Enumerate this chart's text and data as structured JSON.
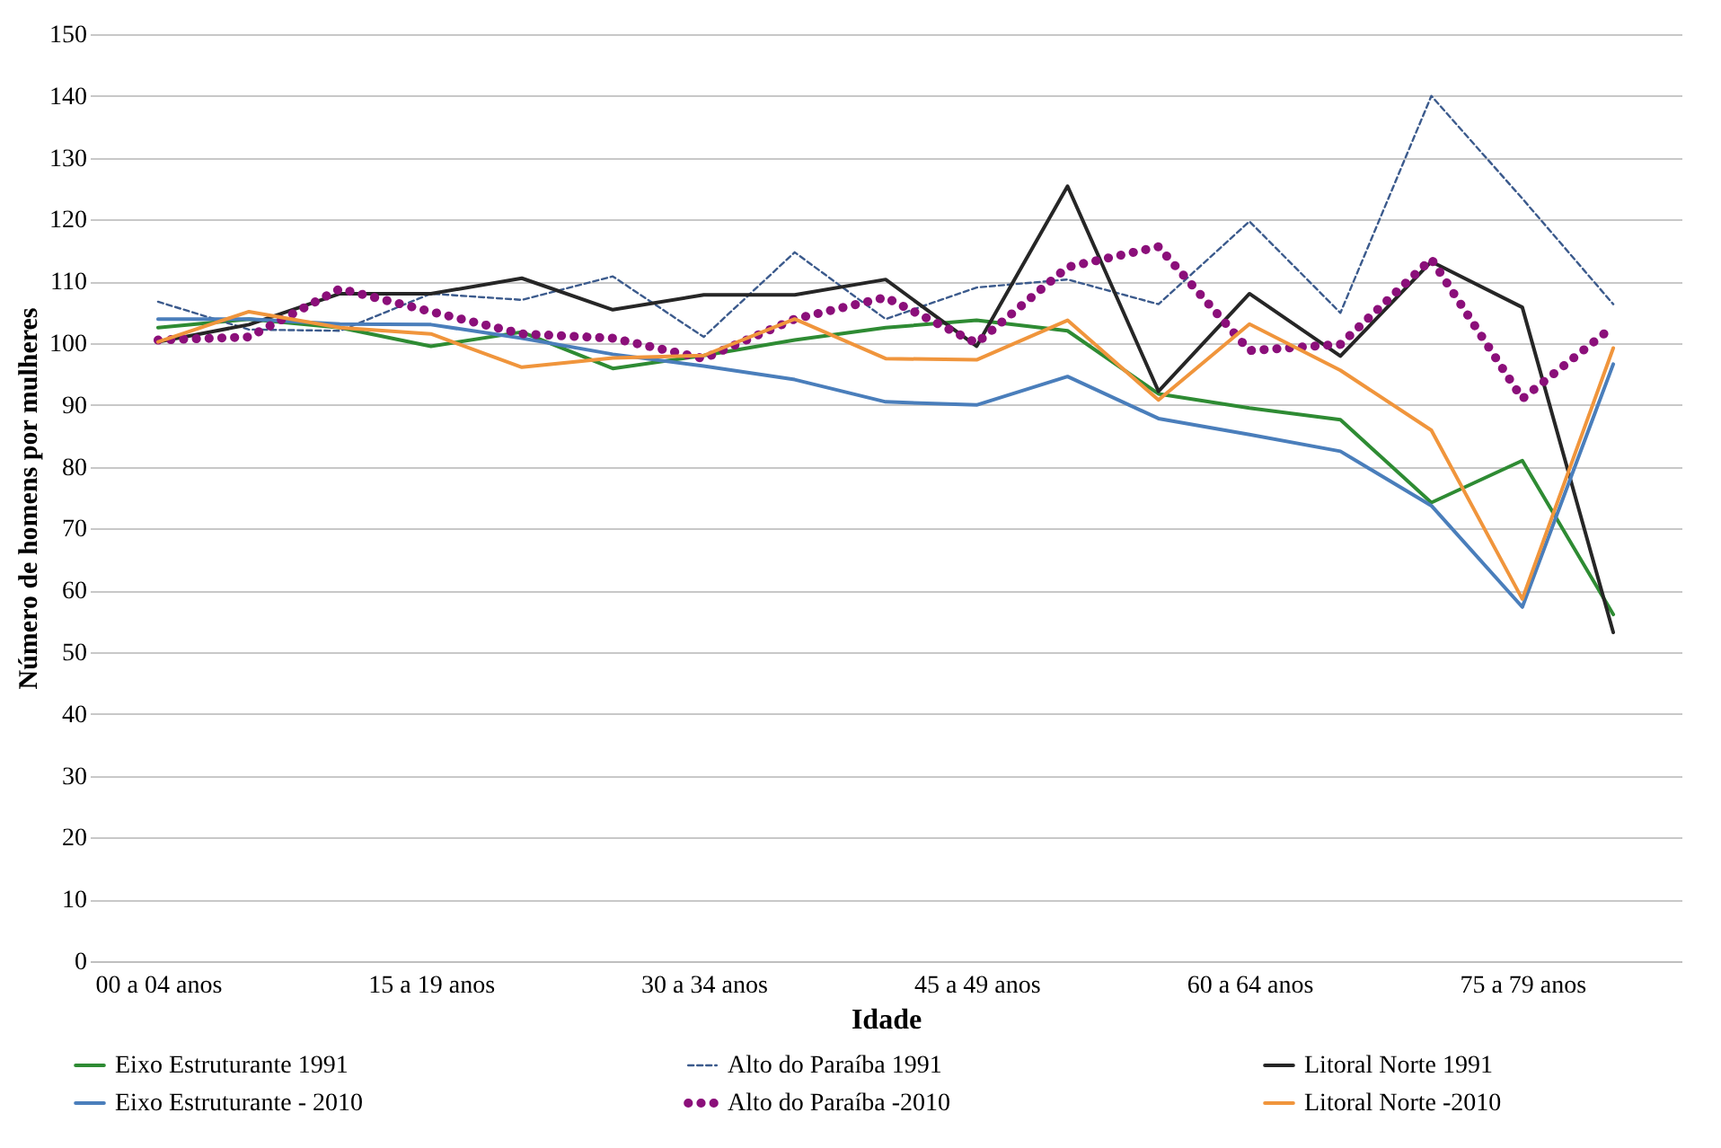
{
  "chart_data": {
    "type": "line",
    "xlabel": "Idade",
    "ylabel": "Número de homens por mulheres",
    "categories": [
      "00 a 04 anos",
      null,
      null,
      "15 a 19 anos",
      null,
      null,
      "30 a 34 anos",
      null,
      null,
      "45 a 49 anos",
      null,
      null,
      "60 a 64 anos",
      null,
      null,
      "75 a 79 anos",
      null
    ],
    "ylim": [
      0,
      150
    ],
    "yticks": [
      0,
      10,
      20,
      30,
      40,
      50,
      60,
      70,
      80,
      90,
      100,
      110,
      120,
      130,
      140,
      150
    ],
    "grid": "y",
    "legend": "bottom",
    "marker": "none",
    "series": [
      {
        "name": "Eixo Estruturante 1991",
        "color": "#2e8b33",
        "line_style": "solid",
        "values": [
          102.5,
          103.9,
          102.5,
          99.5,
          101.8,
          95.9,
          98,
          100.5,
          102.5,
          103.7,
          102,
          91.8,
          89.5,
          87.6,
          74.2,
          81,
          56.1
        ]
      },
      {
        "name": "Alto do Paraíba 1991",
        "color": "#3b5a8c",
        "line_style": "dashed",
        "values": [
          106.7,
          102.2,
          102,
          108,
          107,
          110.8,
          101,
          114.7,
          103.9,
          109,
          110.3,
          106.3,
          119.7,
          104.9,
          140,
          123.4,
          106.3
        ]
      },
      {
        "name": "Litoral Norte 1991",
        "color": "#262626",
        "line_style": "solid",
        "values": [
          100.2,
          103,
          108,
          108,
          110.5,
          105.4,
          107.8,
          107.8,
          110.3,
          99.5,
          125.4,
          92.2,
          108,
          97.9,
          113.2,
          105.8,
          53.2
        ]
      },
      {
        "name": "Eixo Estruturante - 2010",
        "color": "#4a7ebb",
        "line_style": "solid",
        "values": [
          103.9,
          103.9,
          103.1,
          103,
          100.8,
          98.2,
          96.3,
          94.1,
          90.5,
          90,
          94.6,
          87.8,
          85.2,
          82.5,
          73.7,
          57.3,
          96.6
        ]
      },
      {
        "name": "Alto do Paraíba -2010",
        "color": "#8b0f7a",
        "line_style": "dotted",
        "values": [
          100.5,
          101,
          108.8,
          105.1,
          101.5,
          100.8,
          97.5,
          103.9,
          107.4,
          100,
          112.3,
          115.6,
          98.8,
          99.8,
          113.6,
          91,
          102.7
        ]
      },
      {
        "name": "Litoral Norte -2010",
        "color": "#f0953c",
        "line_style": "solid",
        "values": [
          100.2,
          105.1,
          102.5,
          101.5,
          96.1,
          97.6,
          98,
          103.9,
          97.5,
          97.3,
          103.7,
          90.8,
          103.1,
          95.6,
          85.9,
          58.6,
          99.2
        ]
      }
    ]
  }
}
